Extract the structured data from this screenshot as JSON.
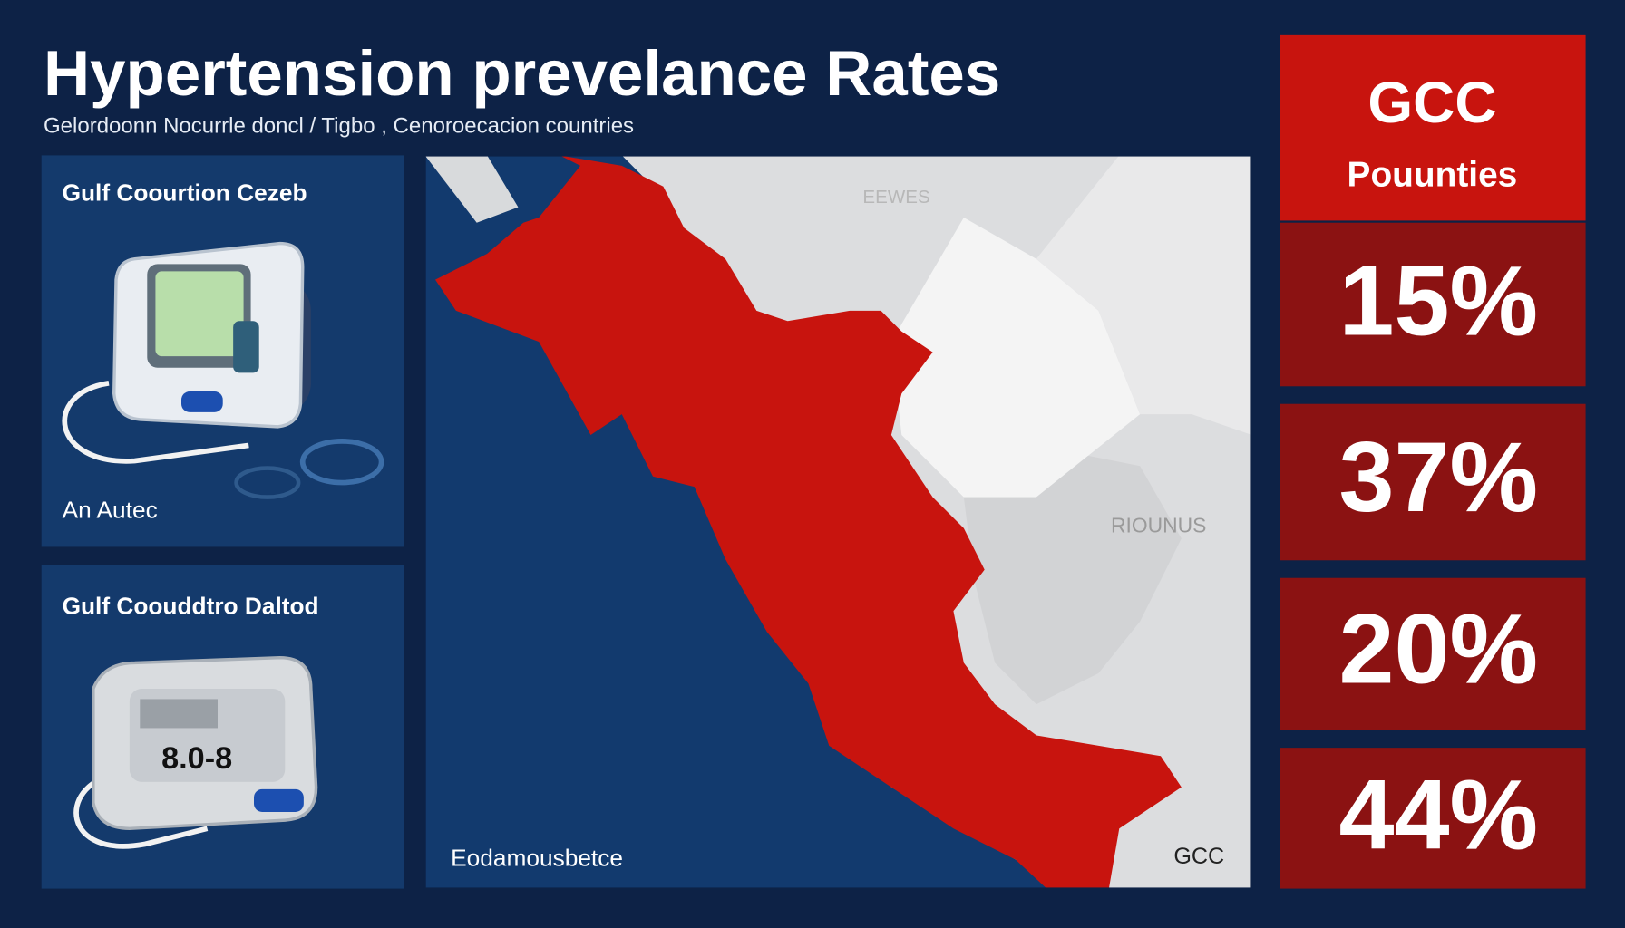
{
  "header": {
    "title": "Hypertension prevelance Rates",
    "subtitle": "Gelordoonn Nocurrle doncl / Tigbo , Cenoroecacion countries"
  },
  "panels": [
    {
      "title": "Gulf Coourtion Cezeb",
      "caption": "An Autec"
    },
    {
      "title": "Gulf Coouddtro Daltod",
      "device_label": "8.0-8"
    }
  ],
  "map": {
    "labels": [
      "EEWES",
      "RIOUNUS",
      "Eodamousbetce",
      "GCC"
    ]
  },
  "stats": {
    "header": [
      "GCC",
      "Pouunties"
    ],
    "values": [
      "15%",
      "37%",
      "20%",
      "44%"
    ]
  }
}
